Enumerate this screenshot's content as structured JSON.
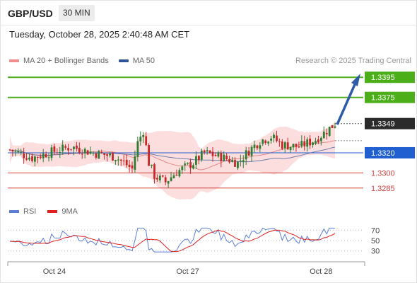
{
  "header": {
    "pair": "GBP/USD",
    "timeframe": "30 MIN"
  },
  "datetime": "Tuesday, October 28, 2025 2:40:48 AM CET",
  "legend": {
    "items": [
      {
        "label": "MA 20 + Bollinger Bands",
        "color": "#f08c8c"
      },
      {
        "label": "MA 50",
        "color": "#2f5597"
      }
    ],
    "credit": "Research © 2025 Trading Central"
  },
  "rsi_legend": {
    "items": [
      {
        "label": "RSI",
        "color": "#5b7fd6"
      },
      {
        "label": "9MA",
        "color": "#e02020"
      }
    ]
  },
  "colors": {
    "up": "#2e7d32",
    "down": "#c62828",
    "target": "#4caf1a",
    "pivot": "#1f5fcf",
    "support": "#d23c3c",
    "arrow": "#2d5ba8"
  },
  "chart_data": {
    "type": "candlestick",
    "y_range": [
      1.3275,
      1.3405
    ],
    "levels": [
      {
        "label": "1.3395",
        "value": 1.3395,
        "kind": "target"
      },
      {
        "label": "1.3375",
        "value": 1.3375,
        "kind": "target"
      },
      {
        "label": "1.3349",
        "value": 1.3349,
        "kind": "last"
      },
      {
        "label": "1.3320",
        "value": 1.332,
        "kind": "pivot"
      },
      {
        "label": "1.3300",
        "value": 1.33,
        "kind": "support"
      },
      {
        "label": "1.3285",
        "value": 1.3285,
        "kind": "support"
      }
    ],
    "x_labels": [
      {
        "label": "Oct 24",
        "index": 16
      },
      {
        "label": "Oct 27",
        "index": 64
      },
      {
        "label": "Oct 28",
        "index": 112
      }
    ],
    "candles_count": 118,
    "rsi_levels": [
      70,
      50,
      30
    ],
    "rsi_labels": [
      "70",
      "50",
      "30"
    ]
  }
}
